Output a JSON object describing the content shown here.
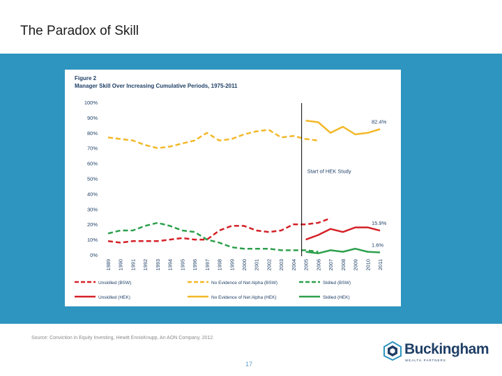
{
  "slide": {
    "title": "The Paradox of Skill",
    "source": "Source: Conviction in Equity Investing, Hewitt EnnisKnupp, An AON Company, 2012.",
    "page_number": "17"
  },
  "logo": {
    "name": "Buckingham",
    "tagline": "WEALTH PARTNERS"
  },
  "colors": {
    "band": "#2e94c0",
    "red": "#d42027",
    "yellow": "#f2b827",
    "green": "#2ca04c"
  },
  "chart_data": {
    "type": "line",
    "figure_label": "Figure 2",
    "title": "Manager Skill Over Increasing Cumulative Periods, 1975-2011",
    "x": [
      "1989",
      "1990",
      "1991",
      "1992",
      "1993",
      "1994",
      "1995",
      "1996",
      "1997",
      "1998",
      "1999",
      "2000",
      "2001",
      "2002",
      "2003",
      "2004",
      "2005",
      "2006",
      "2007",
      "2008",
      "2009",
      "2010",
      "2011"
    ],
    "ylim": [
      0,
      100
    ],
    "yticks": [
      "0%",
      "10%",
      "20%",
      "30%",
      "40%",
      "50%",
      "60%",
      "70%",
      "80%",
      "90%",
      "100%"
    ],
    "annotation": "Start of HEK Study",
    "series": [
      {
        "name": "Unskilled (BSW)",
        "style": "dashed",
        "color": "red",
        "values": [
          9,
          8,
          9,
          9,
          9,
          10,
          11,
          10,
          10,
          16,
          19,
          19,
          16,
          15,
          16,
          20,
          20,
          21,
          24,
          null,
          null,
          null,
          null
        ]
      },
      {
        "name": "No Evidence of Net Alpha (BSW)",
        "style": "dashed",
        "color": "yellow",
        "values": [
          77,
          76,
          75,
          72,
          70,
          71,
          73,
          75,
          80,
          75,
          76,
          79,
          81,
          82,
          77,
          78,
          76,
          75,
          null,
          null,
          null,
          null,
          null
        ]
      },
      {
        "name": "Skilled (BSW)",
        "style": "dashed",
        "color": "green",
        "values": [
          14,
          16,
          16,
          19,
          21,
          19,
          16,
          15,
          10,
          8,
          5,
          4,
          4,
          4,
          3,
          3,
          3,
          2,
          null,
          null,
          null,
          null,
          null
        ]
      },
      {
        "name": "Unskilled (HEK)",
        "style": "solid",
        "color": "red",
        "values": [
          null,
          null,
          null,
          null,
          null,
          null,
          null,
          null,
          null,
          null,
          null,
          null,
          null,
          null,
          null,
          null,
          10,
          13,
          17,
          15,
          18,
          18,
          15.9
        ]
      },
      {
        "name": "No Evidence of Net Alpha (HEK)",
        "style": "solid",
        "color": "yellow",
        "values": [
          null,
          null,
          null,
          null,
          null,
          null,
          null,
          null,
          null,
          null,
          null,
          null,
          null,
          null,
          null,
          null,
          88,
          87,
          80,
          84,
          79,
          80,
          82.4
        ]
      },
      {
        "name": "Skilled (HEK)",
        "style": "solid",
        "color": "green",
        "values": [
          null,
          null,
          null,
          null,
          null,
          null,
          null,
          null,
          null,
          null,
          null,
          null,
          null,
          null,
          null,
          null,
          2,
          1,
          3,
          2,
          4,
          2,
          1.6
        ]
      }
    ],
    "end_labels": [
      "82.4%",
      "15.9%",
      "1.6%"
    ]
  }
}
